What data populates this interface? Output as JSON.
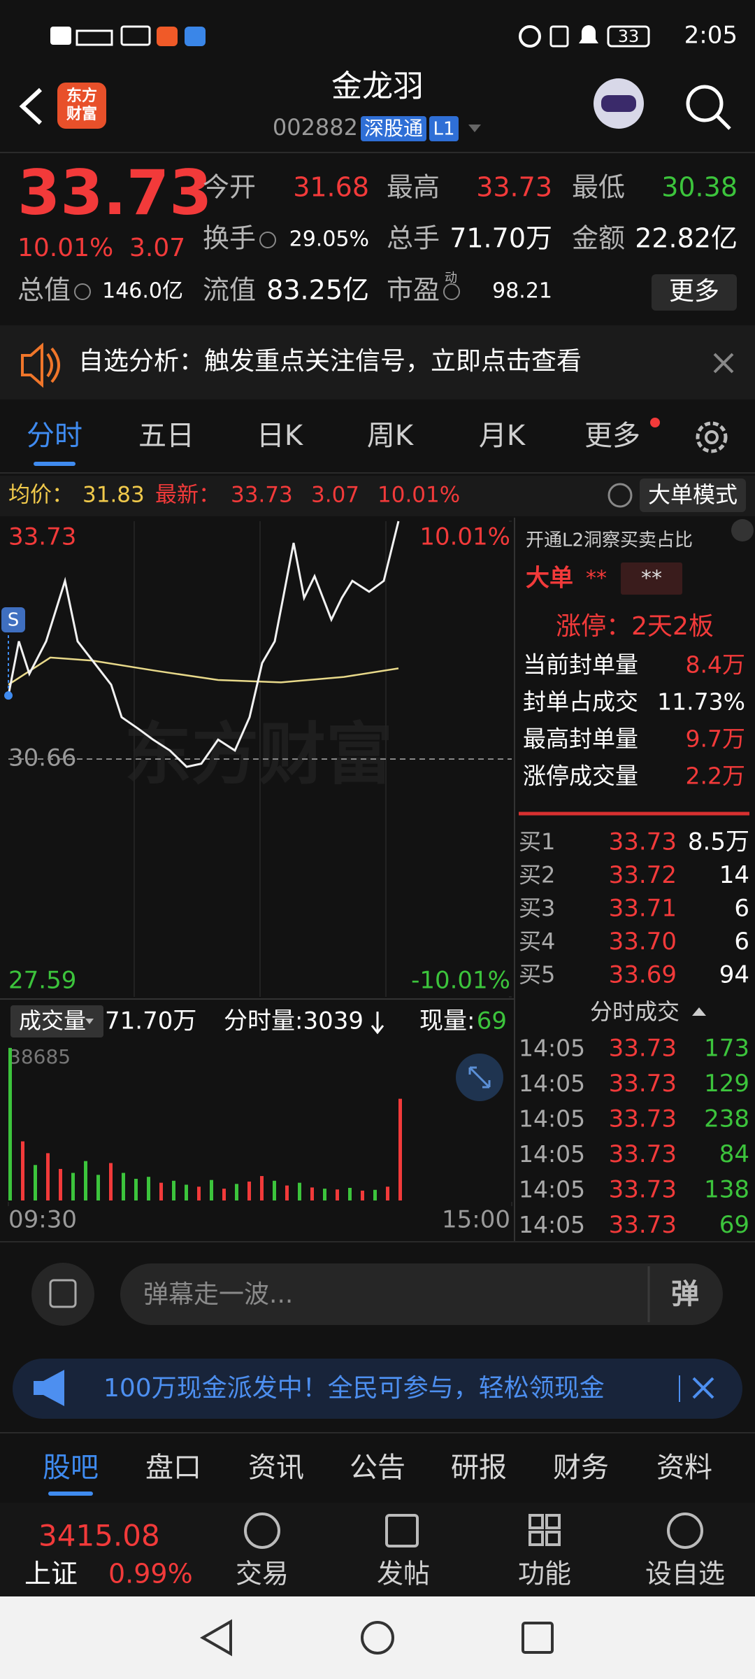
{
  "status_bar": {
    "time": "2:05",
    "battery": "33"
  },
  "header": {
    "logo_top": "东方",
    "logo_bottom": "财富",
    "title": "金龙羽",
    "code": "002882",
    "tag": "深股通",
    "level": "L1"
  },
  "quote": {
    "price": "33.73",
    "change_pct": "10.01%",
    "change": "3.07",
    "color": "#f23a3a",
    "fields": [
      {
        "label": "今开",
        "value": "31.68",
        "color": "#f23a3a"
      },
      {
        "label": "最高",
        "value": "33.73",
        "color": "#f23a3a"
      },
      {
        "label": "最低",
        "value": "30.38",
        "color": "#3cc43c"
      },
      {
        "label": "换手",
        "value": "29.05%",
        "color": "#ffffff"
      },
      {
        "label": "总手",
        "value": "71.70万",
        "color": "#ffffff"
      },
      {
        "label": "金额",
        "value": "22.82亿",
        "color": "#ffffff"
      },
      {
        "label": "总值",
        "value": "146.0亿",
        "color": "#ffffff"
      },
      {
        "label": "流值",
        "value": "83.25亿",
        "color": "#ffffff"
      },
      {
        "label": "市盈",
        "value": "98.21",
        "color": "#ffffff"
      }
    ],
    "pe_sup": "动",
    "more": "更多"
  },
  "banner": {
    "text": "自选分析：触发重点关注信号，立即点击查看"
  },
  "tabs": {
    "items": [
      "分时",
      "五日",
      "日K",
      "周K",
      "月K",
      "更多"
    ],
    "active": 0
  },
  "info": {
    "avg_label": "均价：",
    "avg": "31.83",
    "latest_label": "最新：",
    "latest": "33.73",
    "change": "3.07",
    "pct": "10.01%",
    "mode": "大单模式"
  },
  "chart_data": [
    {
      "type": "line",
      "watermark": "东方财富",
      "marker": "S",
      "xlim": [
        0,
        240
      ],
      "xticks": [
        {
          "value": 0,
          "label": "09:30"
        },
        {
          "value": 240,
          "label": "15:00"
        }
      ],
      "ylim": [
        27.59,
        33.73
      ],
      "yticks": [
        {
          "value": 33.73,
          "label": "33.73"
        },
        30.66,
        27.59
      ],
      "y2lim": [
        -10.01,
        10.01
      ],
      "y2ticks": [
        {
          "value": 10.01,
          "label": "10.01%"
        },
        {
          "value": -10.01,
          "label": "-10.01%"
        }
      ],
      "series": [
        {
          "color": "#f2f2f2",
          "x": [
            0,
            5,
            10,
            18,
            27,
            33,
            41,
            49,
            54,
            62,
            69,
            77,
            85,
            92,
            100,
            108,
            115,
            121,
            127,
            131,
            136,
            141,
            146,
            154,
            159,
            164,
            172,
            179,
            186
          ],
          "values": [
            31.48,
            32.18,
            31.76,
            32.18,
            32.96,
            32.18,
            31.9,
            31.62,
            31.2,
            31.05,
            30.91,
            30.77,
            30.56,
            30.6,
            30.91,
            30.77,
            31.2,
            31.9,
            32.18,
            32.74,
            33.45,
            32.74,
            33.02,
            32.46,
            32.74,
            32.96,
            32.82,
            32.96,
            33.73
          ]
        },
        {
          "color": "#e8d98a",
          "x": [
            0,
            20,
            40,
            70,
            100,
            130,
            160,
            186
          ],
          "values": [
            31.62,
            31.97,
            31.93,
            31.8,
            31.68,
            31.65,
            31.72,
            31.83
          ]
        }
      ]
    },
    {
      "type": "bar",
      "label": "成交量",
      "total": "71.70万",
      "per_min": "分时量:3039",
      "now_label": "现量:",
      "now": "69",
      "ylim": [
        0,
        38685
      ],
      "yticks": [
        38685
      ],
      "up_color": "#f23a3a",
      "down_color": "#3cc43c",
      "x": [
        0,
        6,
        12,
        18,
        24,
        30,
        36,
        42,
        48,
        54,
        60,
        66,
        72,
        78,
        84,
        90,
        96,
        102,
        108,
        114,
        120,
        126,
        132,
        138,
        144,
        150,
        156,
        162,
        168,
        174,
        180,
        186
      ],
      "values": [
        38685,
        15000,
        9000,
        12000,
        8000,
        7000,
        10000,
        6500,
        9500,
        7000,
        5500,
        6000,
        4500,
        5000,
        4000,
        3500,
        5200,
        3000,
        4200,
        4800,
        6200,
        5000,
        3800,
        4500,
        3300,
        3000,
        2800,
        3200,
        2500,
        2700,
        3500,
        25800
      ],
      "up": [
        false,
        true,
        false,
        true,
        true,
        false,
        false,
        false,
        true,
        false,
        false,
        false,
        true,
        false,
        false,
        true,
        false,
        true,
        false,
        true,
        true,
        false,
        true,
        false,
        true,
        false,
        true,
        false,
        true,
        false,
        true,
        true
      ]
    }
  ],
  "side": {
    "promo": "开通L2洞察买卖占比",
    "big": "大单",
    "stars1": "**",
    "stars2": "**",
    "limit": "涨停：2天2板",
    "stats": [
      [
        "当前封单量",
        "8.4万"
      ],
      [
        "封单占成交",
        "11.73%"
      ],
      [
        "最高封单量",
        "9.7万"
      ],
      [
        "涨停成交量",
        "2.2万"
      ]
    ],
    "bids": [
      [
        "买1",
        "33.73",
        "8.5万"
      ],
      [
        "买2",
        "33.72",
        "14"
      ],
      [
        "买3",
        "33.71",
        "6"
      ],
      [
        "买4",
        "33.70",
        "6"
      ],
      [
        "买5",
        "33.69",
        "94"
      ]
    ],
    "trades_title": "分时成交",
    "trades": [
      [
        "14:05",
        "33.73",
        "173"
      ],
      [
        "14:05",
        "33.73",
        "129"
      ],
      [
        "14:05",
        "33.73",
        "238"
      ],
      [
        "14:05",
        "33.73",
        "84"
      ],
      [
        "14:05",
        "33.73",
        "138"
      ],
      [
        "14:05",
        "33.73",
        "69"
      ]
    ]
  },
  "comment": {
    "placeholder": "弹幕走一波...",
    "button": "弹"
  },
  "ad": {
    "text": "100万现金派发中！全民可参与，轻松领现金"
  },
  "bottom_tabs": {
    "items": [
      "股吧",
      "盘口",
      "资讯",
      "公告",
      "研报",
      "财务",
      "资料"
    ],
    "active": 0
  },
  "nav": {
    "index_value": "3415.08",
    "index_name": "上证",
    "index_pct": "0.99%",
    "items": [
      "交易",
      "发帖",
      "功能",
      "设自选"
    ]
  }
}
